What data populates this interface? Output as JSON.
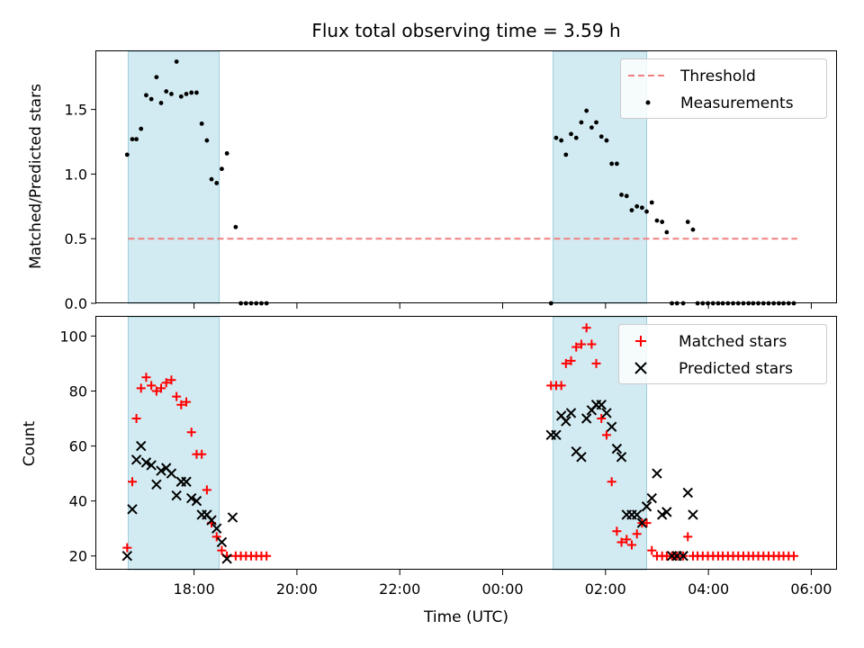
{
  "chart_data": [
    {
      "type": "scatter",
      "title": "Flux total observing time = 3.59 h",
      "xlabel": "",
      "ylabel": "Matched/Predicted stars",
      "xlim": [
        16.1,
        30.5
      ],
      "ylim": [
        0,
        1.95
      ],
      "yticks": [
        0.0,
        0.5,
        1.0,
        1.5
      ],
      "ytick_labels": [
        "0.0",
        "0.5",
        "1.0",
        "1.5"
      ],
      "xticks": [
        18,
        20,
        22,
        24,
        26,
        28,
        30
      ],
      "shaded_intervals": [
        [
          16.72,
          18.49
        ],
        [
          24.98,
          26.8
        ]
      ],
      "legend_position": "top-right",
      "threshold": {
        "name": "Threshold",
        "value": 0.5,
        "x_range": [
          16.72,
          29.73
        ],
        "color": "#f08080"
      },
      "measurements": {
        "name": "Measurements",
        "color": "#000000",
        "x": [
          16.7,
          16.8,
          16.88,
          16.97,
          17.07,
          17.17,
          17.27,
          17.36,
          17.46,
          17.56,
          17.66,
          17.75,
          17.85,
          17.95,
          18.05,
          18.15,
          18.25,
          18.34,
          18.44,
          18.54,
          18.64,
          18.81,
          18.91,
          19.01,
          19.11,
          19.21,
          19.31,
          19.41,
          24.94,
          25.04,
          25.14,
          25.23,
          25.33,
          25.43,
          25.53,
          25.63,
          25.73,
          25.82,
          25.92,
          26.02,
          26.12,
          26.22,
          26.31,
          26.41,
          26.51,
          26.61,
          26.71,
          26.8,
          26.9,
          27.0,
          27.1,
          27.19,
          27.29,
          27.39,
          27.51,
          27.6,
          27.7,
          27.79,
          27.89,
          27.99,
          28.09,
          28.19,
          28.28,
          28.38,
          28.48,
          28.58,
          28.68,
          28.78,
          28.87,
          28.97,
          29.07,
          29.17,
          29.27,
          29.37,
          29.46,
          29.56,
          29.66
        ],
        "y": [
          1.15,
          1.27,
          1.27,
          1.35,
          1.61,
          1.58,
          1.75,
          1.55,
          1.64,
          1.62,
          1.87,
          1.6,
          1.62,
          1.63,
          1.63,
          1.39,
          1.26,
          0.96,
          0.93,
          1.04,
          1.16,
          0.59,
          0.0,
          0.0,
          0.0,
          0.0,
          0.0,
          0.0,
          0.0,
          1.28,
          1.26,
          1.15,
          1.31,
          1.28,
          1.4,
          1.49,
          1.36,
          1.4,
          1.29,
          1.26,
          1.08,
          1.08,
          0.84,
          0.83,
          0.72,
          0.75,
          0.74,
          0.71,
          0.78,
          0.64,
          0.63,
          0.55,
          0.0,
          0.0,
          0.0,
          0.63,
          0.57,
          0.0,
          0.0,
          0.0,
          0.0,
          0.0,
          0.0,
          0.0,
          0.0,
          0.0,
          0.0,
          0.0,
          0.0,
          0.0,
          0.0,
          0.0,
          0.0,
          0.0,
          0.0,
          0.0,
          0.0
        ]
      }
    },
    {
      "type": "scatter",
      "title": "",
      "xlabel": "Time (UTC)",
      "ylabel": "Count",
      "xlim": [
        16.1,
        30.5
      ],
      "ylim": [
        15,
        107
      ],
      "yticks": [
        20,
        40,
        60,
        80,
        100
      ],
      "ytick_labels": [
        "20",
        "40",
        "60",
        "80",
        "100"
      ],
      "xticks": [
        18,
        20,
        22,
        24,
        26,
        28,
        30
      ],
      "xtick_labels": [
        "18:00",
        "20:00",
        "22:00",
        "00:00",
        "02:00",
        "04:00",
        "06:00"
      ],
      "shaded_intervals": [
        [
          16.72,
          18.49
        ],
        [
          24.98,
          26.8
        ]
      ],
      "legend_position": "top-right",
      "series": [
        {
          "name": "Matched stars",
          "marker": "plus",
          "color": "#ff0000",
          "x": [
            16.7,
            16.8,
            16.88,
            16.97,
            17.07,
            17.17,
            17.27,
            17.36,
            17.46,
            17.56,
            17.66,
            17.75,
            17.85,
            17.95,
            18.05,
            18.15,
            18.25,
            18.34,
            18.44,
            18.54,
            18.64,
            18.81,
            18.91,
            19.01,
            19.11,
            19.21,
            19.31,
            19.41,
            24.94,
            25.04,
            25.14,
            25.23,
            25.33,
            25.43,
            25.53,
            25.63,
            25.73,
            25.82,
            25.92,
            26.02,
            26.12,
            26.22,
            26.31,
            26.41,
            26.51,
            26.61,
            26.71,
            26.8,
            26.9,
            27.0,
            27.1,
            27.19,
            27.29,
            27.39,
            27.51,
            27.6,
            27.7,
            27.79,
            27.89,
            27.99,
            28.09,
            28.19,
            28.28,
            28.38,
            28.48,
            28.58,
            28.68,
            28.78,
            28.87,
            28.97,
            29.07,
            29.17,
            29.27,
            29.37,
            29.46,
            29.56,
            29.66
          ],
          "y": [
            23,
            47,
            70,
            81,
            85,
            82,
            80,
            81,
            83,
            84,
            78,
            75,
            76,
            65,
            57,
            57,
            44,
            32,
            27,
            22,
            20,
            20,
            20,
            20,
            20,
            20,
            20,
            20,
            82,
            82,
            82,
            90,
            91,
            96,
            97,
            103,
            97,
            90,
            70,
            64,
            47,
            29,
            25,
            26,
            24,
            28,
            32,
            32,
            22,
            20,
            20,
            20,
            20,
            20,
            20,
            27,
            20,
            20,
            20,
            20,
            20,
            20,
            20,
            20,
            20,
            20,
            20,
            20,
            20,
            20,
            20,
            20,
            20,
            20,
            20,
            20,
            20
          ]
        },
        {
          "name": "Predicted stars",
          "marker": "x",
          "color": "#000000",
          "x": [
            16.7,
            16.8,
            16.88,
            16.97,
            17.07,
            17.17,
            17.27,
            17.36,
            17.46,
            17.56,
            17.66,
            17.75,
            17.85,
            17.95,
            18.05,
            18.15,
            18.25,
            18.34,
            18.44,
            18.54,
            18.64,
            18.75,
            24.94,
            25.04,
            25.14,
            25.23,
            25.33,
            25.43,
            25.53,
            25.63,
            25.73,
            25.82,
            25.92,
            26.02,
            26.12,
            26.22,
            26.31,
            26.41,
            26.51,
            26.61,
            26.71,
            26.8,
            26.9,
            27.0,
            27.1,
            27.19,
            27.29,
            27.39,
            27.51,
            27.6,
            27.7
          ],
          "y": [
            20,
            37,
            55,
            60,
            54,
            53,
            46,
            51,
            52,
            50,
            42,
            47,
            47,
            41,
            40,
            35,
            35,
            33,
            30,
            25,
            19,
            34,
            64,
            64,
            71,
            69,
            72,
            58,
            56,
            70,
            73,
            75,
            75,
            72,
            67,
            59,
            56,
            35,
            35,
            35,
            32,
            38,
            41,
            50,
            35,
            36,
            20,
            20,
            20,
            43,
            35
          ]
        }
      ]
    }
  ]
}
